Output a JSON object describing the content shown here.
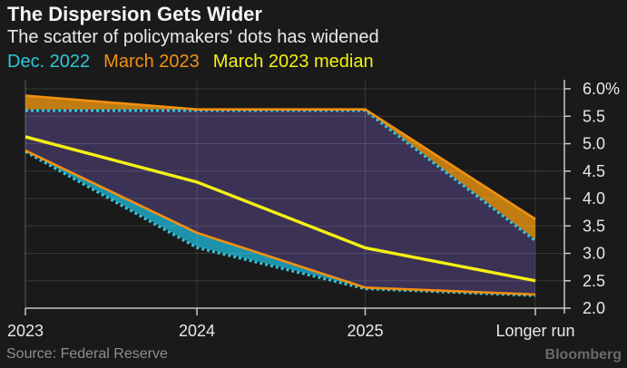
{
  "header": {
    "title": "The Dispersion Gets Wider",
    "subtitle": "The scatter of policymakers' dots has widened"
  },
  "legend": {
    "items": [
      {
        "label": "Dec. 2022",
        "color": "#2cc8da"
      },
      {
        "label": "March 2023",
        "color": "#f39110"
      },
      {
        "label": "March 2023 median",
        "color": "#f5f211"
      }
    ]
  },
  "footer": {
    "source": "Source: Federal Reserve",
    "brand": "Bloomberg"
  },
  "chart_data": {
    "type": "area",
    "title": "The Dispersion Gets Wider",
    "subtitle": "The scatter of policymakers' dots has widened",
    "unit": "percent",
    "categories": [
      "2023",
      "2024",
      "2025",
      "Longer run"
    ],
    "series": [
      {
        "name": "Dec. 2022",
        "kind": "range-band",
        "high": [
          5.625,
          5.625,
          5.625,
          3.25
        ],
        "low": [
          4.875,
          3.125,
          2.375,
          2.25
        ],
        "line_color": "#35c6da",
        "fill_color": "#1d93ab",
        "line_style": "dotted"
      },
      {
        "name": "March 2023",
        "kind": "range-band",
        "high": [
          5.875,
          5.625,
          5.625,
          3.625
        ],
        "low": [
          4.875,
          3.375,
          2.375,
          2.25
        ],
        "line_color": "#f29012",
        "fill_color": "#c07c10",
        "line_style": "solid"
      },
      {
        "name": "March 2023 median",
        "kind": "line",
        "values": [
          5.125,
          4.3,
          3.1,
          2.5
        ],
        "line_color": "#f5f112"
      }
    ],
    "overlap_fill_color": "#3b3255",
    "xaxis": {
      "tick_labels": [
        "2023",
        "2024",
        "2025",
        "Longer run"
      ]
    },
    "yaxis": {
      "side": "right",
      "ylim": [
        2.0,
        6.0
      ],
      "ticks": [
        2.0,
        2.5,
        3.0,
        3.5,
        4.0,
        4.5,
        5.0,
        5.5,
        6.0
      ],
      "tick_labels": [
        "2.0",
        "2.5",
        "3.0",
        "3.5",
        "4.0",
        "4.5",
        "5.0",
        "5.5",
        "6.0%"
      ]
    },
    "grid": true,
    "legend_position": "top-left",
    "axis_color": "#c8c8c8",
    "grid_color": "rgba(255,255,255,0.13)",
    "edge_grid_color": "rgba(255,255,255,0.30)",
    "tick_label_color": "#e8e8e8",
    "background_color": "#1a1a1a"
  }
}
